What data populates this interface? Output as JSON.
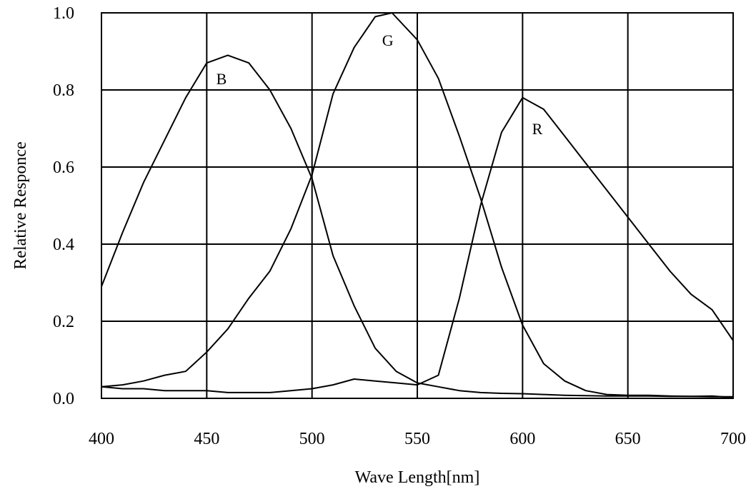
{
  "chart_data": {
    "type": "line",
    "xlabel": "Wave Length[nm]",
    "ylabel": "Relative Responce",
    "xlim": [
      400,
      700
    ],
    "ylim": [
      0.0,
      1.0
    ],
    "grid": true,
    "x_ticks": [
      400,
      450,
      500,
      550,
      600,
      650,
      700
    ],
    "x_tick_labels": [
      "400",
      "450",
      "500",
      "550",
      "600",
      "650",
      "700"
    ],
    "y_ticks": [
      0.0,
      0.2,
      0.4,
      0.6,
      0.8,
      1.0
    ],
    "y_tick_labels": [
      "0.0",
      "0.2",
      "0.4",
      "0.6",
      "0.8",
      "1.0"
    ],
    "line_color": "#000000",
    "series": [
      {
        "name": "B",
        "label_at": [
          457,
          0.83
        ],
        "points": [
          [
            400,
            0.29
          ],
          [
            410,
            0.43
          ],
          [
            420,
            0.56
          ],
          [
            430,
            0.67
          ],
          [
            440,
            0.78
          ],
          [
            450,
            0.87
          ],
          [
            460,
            0.89
          ],
          [
            470,
            0.87
          ],
          [
            480,
            0.8
          ],
          [
            490,
            0.7
          ],
          [
            500,
            0.57
          ],
          [
            510,
            0.37
          ],
          [
            520,
            0.24
          ],
          [
            530,
            0.13
          ],
          [
            540,
            0.07
          ],
          [
            550,
            0.04
          ],
          [
            560,
            0.03
          ],
          [
            570,
            0.02
          ],
          [
            580,
            0.015
          ],
          [
            590,
            0.013
          ],
          [
            600,
            0.012
          ],
          [
            610,
            0.01
          ],
          [
            620,
            0.008
          ],
          [
            630,
            0.007
          ],
          [
            640,
            0.006
          ],
          [
            650,
            0.006
          ],
          [
            660,
            0.006
          ],
          [
            670,
            0.005
          ],
          [
            680,
            0.005
          ],
          [
            690,
            0.004
          ],
          [
            700,
            0.004
          ]
        ]
      },
      {
        "name": "G",
        "label_at": [
          536,
          0.93
        ],
        "points": [
          [
            400,
            0.03
          ],
          [
            410,
            0.035
          ],
          [
            420,
            0.045
          ],
          [
            430,
            0.06
          ],
          [
            440,
            0.07
          ],
          [
            450,
            0.12
          ],
          [
            460,
            0.18
          ],
          [
            470,
            0.26
          ],
          [
            480,
            0.33
          ],
          [
            490,
            0.44
          ],
          [
            500,
            0.58
          ],
          [
            510,
            0.79
          ],
          [
            520,
            0.91
          ],
          [
            530,
            0.99
          ],
          [
            538,
            1.0
          ],
          [
            550,
            0.93
          ],
          [
            560,
            0.83
          ],
          [
            570,
            0.68
          ],
          [
            580,
            0.52
          ],
          [
            590,
            0.34
          ],
          [
            600,
            0.19
          ],
          [
            610,
            0.09
          ],
          [
            620,
            0.045
          ],
          [
            630,
            0.02
          ],
          [
            640,
            0.01
          ],
          [
            650,
            0.008
          ],
          [
            660,
            0.008
          ],
          [
            670,
            0.006
          ],
          [
            680,
            0.005
          ],
          [
            690,
            0.006
          ],
          [
            700,
            0.002
          ]
        ]
      },
      {
        "name": "R",
        "label_at": [
          607,
          0.7
        ],
        "points": [
          [
            400,
            0.03
          ],
          [
            410,
            0.025
          ],
          [
            420,
            0.025
          ],
          [
            430,
            0.02
          ],
          [
            440,
            0.02
          ],
          [
            450,
            0.02
          ],
          [
            460,
            0.015
          ],
          [
            470,
            0.015
          ],
          [
            480,
            0.015
          ],
          [
            490,
            0.02
          ],
          [
            500,
            0.025
          ],
          [
            510,
            0.035
          ],
          [
            520,
            0.05
          ],
          [
            530,
            0.045
          ],
          [
            540,
            0.04
          ],
          [
            550,
            0.035
          ],
          [
            560,
            0.06
          ],
          [
            570,
            0.26
          ],
          [
            580,
            0.5
          ],
          [
            590,
            0.69
          ],
          [
            600,
            0.78
          ],
          [
            610,
            0.75
          ],
          [
            620,
            0.68
          ],
          [
            630,
            0.61
          ],
          [
            640,
            0.54
          ],
          [
            650,
            0.47
          ],
          [
            660,
            0.4
          ],
          [
            670,
            0.33
          ],
          [
            680,
            0.27
          ],
          [
            690,
            0.23
          ],
          [
            700,
            0.15
          ]
        ]
      }
    ]
  }
}
